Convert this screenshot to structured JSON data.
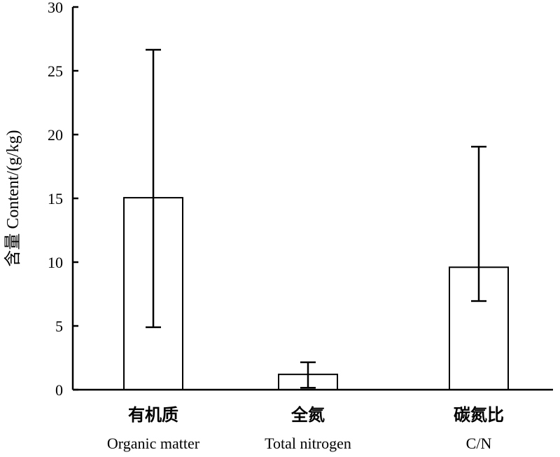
{
  "chart_data": {
    "type": "bar",
    "title": "",
    "xlabel": "",
    "ylabel": "含量 Content/(g/kg)",
    "ylim": [
      0,
      30
    ],
    "yticks": [
      0,
      5,
      10,
      15,
      20,
      25,
      30
    ],
    "grid": false,
    "legend": "none",
    "categories": [
      {
        "cn": "有机质",
        "en": "Organic matter"
      },
      {
        "cn": "全氮",
        "en": "Total nitrogen"
      },
      {
        "cn": "碳氮比",
        "en": "C/N"
      }
    ],
    "values": [
      15.05,
      1.2,
      9.6
    ],
    "error_low": [
      4.9,
      0.15,
      6.95
    ],
    "error_high": [
      26.65,
      2.15,
      19.05
    ],
    "bar_fill": "#ffffff",
    "bar_stroke": "#000000"
  }
}
